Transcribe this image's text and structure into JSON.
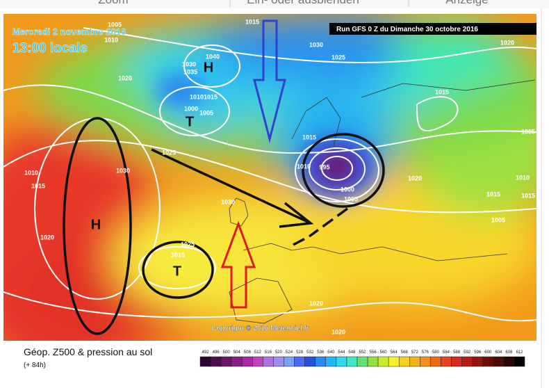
{
  "toolbar": {
    "items": [
      "Zoom",
      "Ein- oder ausblenden",
      "Anzeige"
    ]
  },
  "header": {
    "date": "Mercredi 2 novembre 2016",
    "time": "13:00 locale",
    "run": "Run GFS 0 Z du Dimanche 30 octobre 2016"
  },
  "copyright": "Copyright © 2016 Meteociel.fr",
  "footer": {
    "title": "Géop. Z500 & pression au sol",
    "lead": "(+ 84h)"
  },
  "pressure_centers": [
    "H",
    "T",
    "H",
    "T"
  ],
  "isobar_labels": [
    "1005",
    "1010",
    "1015",
    "1030",
    "1025",
    "1020",
    "1040",
    "1035",
    "1030",
    "1020",
    "1015",
    "1010",
    "1015",
    "1000",
    "1005",
    "1025",
    "1030",
    "1010",
    "1015",
    "1015",
    "1010",
    "995",
    "1000",
    "1005",
    "1020",
    "1015",
    "1010",
    "1005",
    "1030",
    "1020",
    "1025",
    "1015",
    "1020",
    "1020",
    "1005",
    "1015"
  ],
  "legend": {
    "labels": [
      "492",
      "496",
      "500",
      "504",
      "508",
      "512",
      "516",
      "520",
      "524",
      "528",
      "532",
      "536",
      "540",
      "544",
      "548",
      "552",
      "556",
      "560",
      "564",
      "568",
      "572",
      "576",
      "580",
      "584",
      "588",
      "592",
      "596",
      "600",
      "604",
      "608",
      "612"
    ],
    "colors": [
      "#2a0630",
      "#4a0c4a",
      "#6a1468",
      "#8a1c88",
      "#a828a6",
      "#c040c0",
      "#b070e0",
      "#9c8cf0",
      "#7aa0f8",
      "#4a6cf0",
      "#2a50e0",
      "#2a88f0",
      "#28b4f8",
      "#30d8f0",
      "#40e8c0",
      "#60e070",
      "#90e040",
      "#c8ec30",
      "#f4f030",
      "#f8d020",
      "#f4b018",
      "#f09018",
      "#ee6a1a",
      "#e84424",
      "#d82a20",
      "#b81c18",
      "#90140e",
      "#6a0e08",
      "#4a0a06",
      "#2a0604",
      "#000000"
    ]
  }
}
